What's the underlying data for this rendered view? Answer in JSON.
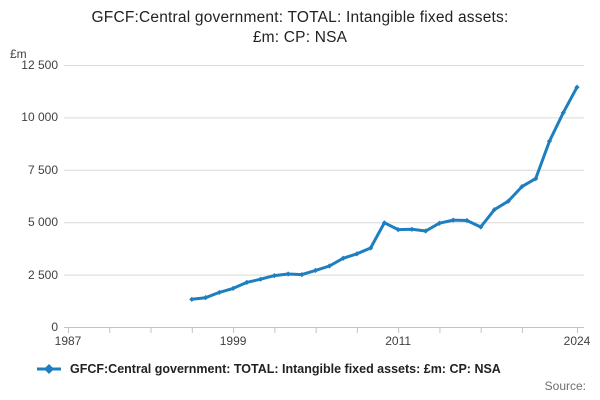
{
  "title": {
    "line1": "GFCF:Central government: TOTAL: Intangible fixed assets:",
    "line2": "£m: CP: NSA"
  },
  "legend": {
    "label": "GFCF:Central government: TOTAL: Intangible fixed assets: £m: CP: NSA"
  },
  "source_label": "Source:",
  "chart_data": {
    "type": "line",
    "title": "GFCF:Central government: TOTAL: Intangible fixed assets: £m: CP: NSA",
    "unit_label": "£m",
    "ylabel": "£m",
    "xlabel": "",
    "grid": true,
    "legend_position": "bottom-left",
    "xlim": [
      1987,
      2024
    ],
    "ylim": [
      0,
      12500
    ],
    "y_ticks": [
      0,
      2500,
      5000,
      7500,
      10000,
      12500
    ],
    "y_tick_labels": [
      "0",
      "2 500",
      "5 000",
      "7 500",
      "10 000",
      "12 500"
    ],
    "x_minor_ticks": [
      1987,
      1990,
      1993,
      1996,
      1999,
      2002,
      2005,
      2008,
      2011,
      2014,
      2017,
      2020,
      2024
    ],
    "x_tick_labels": [
      {
        "year": 1987,
        "label": "1987"
      },
      {
        "year": 1999,
        "label": "1999"
      },
      {
        "year": 2011,
        "label": "2011"
      },
      {
        "year": 2024,
        "label": "2024"
      }
    ],
    "line_color": "#1d7fbf",
    "grid_color": "#d9d9d9",
    "axis_color": "#b7c7d5",
    "x": [
      1996,
      1997,
      1998,
      1999,
      2000,
      2001,
      2002,
      2003,
      2004,
      2005,
      2006,
      2007,
      2008,
      2009,
      2010,
      2011,
      2012,
      2013,
      2014,
      2015,
      2016,
      2017,
      2018,
      2019,
      2020,
      2021,
      2022,
      2023,
      2024
    ],
    "series": [
      {
        "name": "GFCF:Central government: TOTAL: Intangible fixed assets: £m: CP: NSA",
        "values": [
          1320,
          1400,
          1650,
          1840,
          2130,
          2280,
          2450,
          2530,
          2500,
          2700,
          2910,
          3280,
          3490,
          3770,
          4970,
          4645,
          4660,
          4580,
          4950,
          5100,
          5080,
          4770,
          5600,
          6000,
          6700,
          7080,
          8870,
          10220,
          11440
        ]
      }
    ]
  }
}
